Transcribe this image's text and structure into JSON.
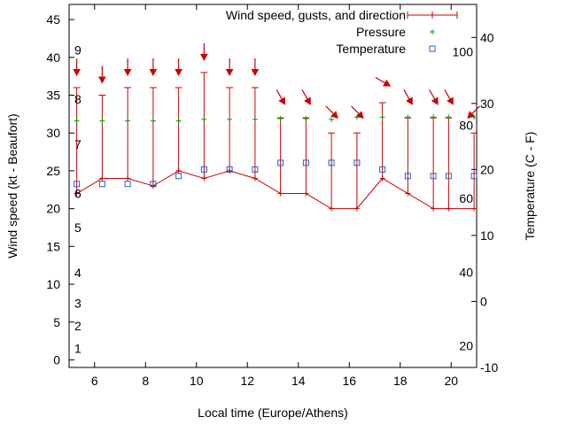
{
  "chart_data": {
    "type": "line",
    "xlabel": "Local time (Europe/Athens)",
    "ylabel_left": "Wind speed (kt - Beaufort)",
    "ylabel_right": "Temperature (C - F)",
    "xlim": [
      5,
      21
    ],
    "ylim_left": [
      -1,
      47
    ],
    "ylim_right": [
      -10,
      45
    ],
    "x_ticks": [
      "6",
      "8",
      "10",
      "12",
      "14",
      "16",
      "18",
      "20"
    ],
    "y_left_ticks": [
      "0",
      "5",
      "10",
      "15",
      "20",
      "25",
      "30",
      "35",
      "40",
      "45"
    ],
    "y_right_ticks": [
      "-10",
      "0",
      "10",
      "20",
      "30",
      "40"
    ],
    "beaufort_labels": [
      {
        "label": "1",
        "kt": 1.5
      },
      {
        "label": "2",
        "kt": 4.5
      },
      {
        "label": "3",
        "kt": 7.5
      },
      {
        "label": "4",
        "kt": 11.5
      },
      {
        "label": "5",
        "kt": 17.5
      },
      {
        "label": "6",
        "kt": 22
      },
      {
        "label": "7",
        "kt": 28.5
      },
      {
        "label": "8",
        "kt": 34.5
      },
      {
        "label": "9",
        "kt": 41
      }
    ],
    "fahrenheit_labels": [
      {
        "label": "20",
        "c": -6.7
      },
      {
        "label": "40",
        "c": 4.4
      },
      {
        "label": "60",
        "c": 15.6
      },
      {
        "label": "80",
        "c": 26.7
      },
      {
        "label": "100",
        "c": 37.8
      }
    ],
    "series": [
      {
        "name": "Wind speed, gusts, and direction",
        "color": "#cc0000",
        "x": [
          5.3,
          6.3,
          7.3,
          8.3,
          9.3,
          10.3,
          11.3,
          12.3,
          13.3,
          14.3,
          15.3,
          16.3,
          17.3,
          18.3,
          19.3,
          19.9,
          20.9
        ],
        "values": [
          22,
          24,
          24,
          23,
          25,
          24,
          25,
          24,
          22,
          22,
          20,
          20,
          24,
          22,
          20,
          20,
          20
        ],
        "gusts": [
          36,
          35,
          36,
          36,
          36,
          38,
          36,
          36,
          32,
          32,
          30,
          30,
          34,
          32,
          32,
          32,
          30
        ],
        "direction_deg": [
          0,
          0,
          0,
          0,
          0,
          0,
          0,
          0,
          330,
          330,
          315,
          315,
          300,
          330,
          330,
          330,
          45
        ]
      },
      {
        "name": "Pressure",
        "color": "#00a000",
        "x": [
          5.3,
          6.3,
          7.3,
          8.3,
          9.3,
          10.3,
          11.3,
          12.3,
          13.3,
          14.3,
          15.3,
          16.3,
          17.3,
          18.3,
          19.3,
          19.9,
          20.9
        ],
        "values": [
          31.6,
          31.6,
          31.6,
          31.6,
          31.6,
          31.8,
          31.8,
          31.8,
          31.9,
          31.9,
          31.8,
          32.1,
          32.1,
          32.1,
          32.1,
          32.1,
          32.1
        ]
      },
      {
        "name": "Temperature",
        "color": "#2060c0",
        "x": [
          5.3,
          6.3,
          7.3,
          8.3,
          9.3,
          10.3,
          11.3,
          12.3,
          13.3,
          14.3,
          15.3,
          16.3,
          17.3,
          18.3,
          19.3,
          19.9,
          20.9
        ],
        "values": [
          17.8,
          17.8,
          17.8,
          17.8,
          19,
          20,
          20,
          20,
          21,
          21,
          21,
          21,
          20,
          19,
          19,
          19,
          19
        ]
      }
    ]
  }
}
